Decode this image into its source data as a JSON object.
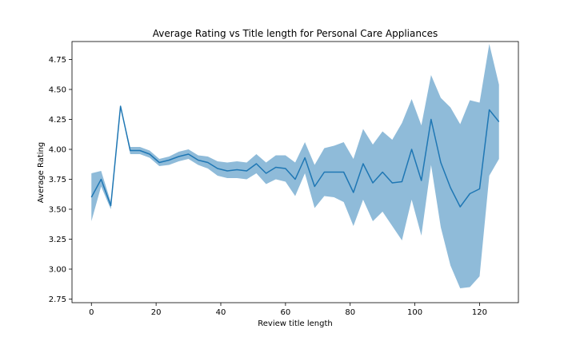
{
  "chart_data": {
    "type": "line",
    "title": "Average Rating vs Title length for Personal Care Appliances",
    "xlabel": "Review title length",
    "ylabel": "Average Rating",
    "xlim": [
      -6,
      132
    ],
    "ylim": [
      2.72,
      4.9
    ],
    "xticks": [
      0,
      20,
      40,
      60,
      80,
      100,
      120
    ],
    "yticks": [
      2.75,
      3.0,
      3.25,
      3.5,
      3.75,
      4.0,
      4.25,
      4.5,
      4.75
    ],
    "ytick_labels": [
      "2.75",
      "3.00",
      "3.25",
      "3.50",
      "3.75",
      "4.00",
      "4.25",
      "4.50",
      "4.75"
    ],
    "grid": false,
    "colors": {
      "line": "#1f77b4",
      "band": "#1f77b4"
    },
    "band_opacity": 0.5,
    "series": [
      {
        "x": [
          0,
          3,
          6,
          9,
          12,
          15,
          18,
          21,
          24,
          27,
          30,
          33,
          36,
          39,
          42,
          45,
          48,
          51,
          54,
          57,
          60,
          63,
          66,
          69,
          72,
          75,
          78,
          81,
          84,
          87,
          90,
          93,
          96,
          99,
          102,
          105,
          108,
          111,
          114,
          117,
          120,
          123,
          126
        ],
        "y": [
          3.6,
          3.75,
          3.53,
          4.36,
          3.99,
          3.99,
          3.96,
          3.89,
          3.91,
          3.94,
          3.96,
          3.91,
          3.89,
          3.84,
          3.82,
          3.83,
          3.82,
          3.88,
          3.8,
          3.85,
          3.84,
          3.75,
          3.93,
          3.69,
          3.81,
          3.81,
          3.81,
          3.64,
          3.88,
          3.72,
          3.81,
          3.72,
          3.73,
          4.0,
          3.74,
          4.25,
          3.89,
          3.68,
          3.52,
          3.63,
          3.67,
          4.33,
          4.23
        ],
        "y_lower": [
          3.4,
          3.69,
          3.5,
          4.36,
          3.96,
          3.96,
          3.93,
          3.86,
          3.87,
          3.9,
          3.92,
          3.87,
          3.84,
          3.78,
          3.76,
          3.76,
          3.75,
          3.8,
          3.71,
          3.75,
          3.73,
          3.61,
          3.8,
          3.51,
          3.61,
          3.6,
          3.56,
          3.36,
          3.58,
          3.4,
          3.48,
          3.36,
          3.24,
          3.58,
          3.28,
          3.87,
          3.35,
          3.03,
          2.84,
          2.85,
          2.94,
          3.78,
          3.92
        ],
        "y_upper": [
          3.8,
          3.82,
          3.56,
          4.36,
          4.02,
          4.02,
          3.99,
          3.92,
          3.94,
          3.98,
          4.0,
          3.95,
          3.94,
          3.9,
          3.89,
          3.9,
          3.89,
          3.96,
          3.89,
          3.95,
          3.95,
          3.89,
          4.06,
          3.87,
          4.01,
          4.03,
          4.06,
          3.92,
          4.17,
          4.04,
          4.15,
          4.08,
          4.22,
          4.42,
          4.2,
          4.62,
          4.43,
          4.35,
          4.21,
          4.41,
          4.39,
          4.88,
          4.54
        ]
      }
    ]
  }
}
